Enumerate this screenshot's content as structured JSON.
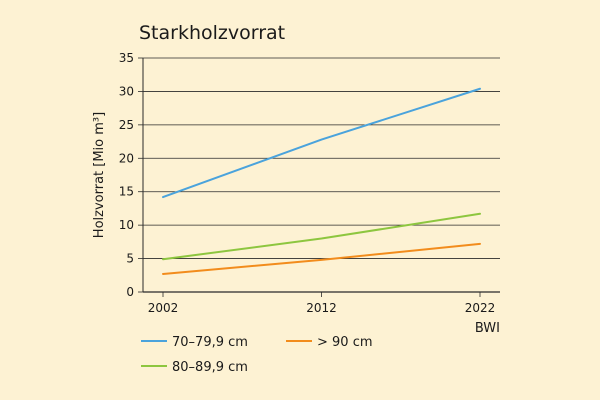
{
  "chart_data": {
    "type": "line",
    "title": "Starkholzvorrat",
    "xlabel": "BWI",
    "ylabel": "Holzvorrat [Mio m³]",
    "x": [
      2002,
      2012,
      2022
    ],
    "x_ticks": [
      "2002",
      "2012",
      "2022"
    ],
    "y_ticks": [
      "0",
      "5",
      "10",
      "15",
      "20",
      "25",
      "30",
      "35"
    ],
    "ylim": [
      0,
      35
    ],
    "grid": true,
    "legend_position": "bottom",
    "series": [
      {
        "name": "70–79,9 cm",
        "color": "#4aa3dc",
        "values": [
          14.2,
          22.8,
          30.4
        ]
      },
      {
        "name": "> 90 cm",
        "color": "#f28c1c",
        "values": [
          2.7,
          4.8,
          7.2
        ]
      },
      {
        "name": "80–89,9 cm",
        "color": "#8dc63f",
        "values": [
          4.9,
          8.0,
          11.7
        ]
      }
    ]
  }
}
